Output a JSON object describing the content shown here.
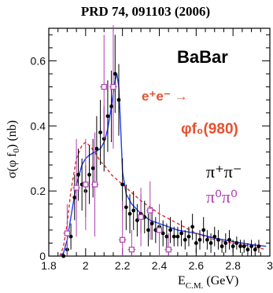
{
  "chart_data": {
    "type": "scatter",
    "title": "PRD 74, 091103 (2006)",
    "xlabel": "E",
    "xlabel_sub": "C.M.",
    "xlabel_unit": "(GeV)",
    "ylabel": "σ(φ f",
    "ylabel_sub": "0",
    "ylabel_unit": ") (nb)",
    "xlim": [
      1.8,
      3.0
    ],
    "ylim": [
      0,
      0.7
    ],
    "x_ticks": [
      "1.8",
      "2",
      "2.2",
      "2.4",
      "2.6",
      "2.8",
      "3"
    ],
    "x_tick_values": [
      1.8,
      2.0,
      2.2,
      2.4,
      2.6,
      2.8,
      3.0
    ],
    "y_ticks": [
      "0",
      "0.2",
      "0.4",
      "0.6"
    ],
    "y_tick_values": [
      0,
      0.2,
      0.4,
      0.6
    ],
    "annotations": {
      "experiment": "BaBar",
      "process": "e⁺e⁻ →",
      "final_state": "φf₀(980)"
    },
    "legend": [
      {
        "name": "π⁺π⁻",
        "color": "#000000"
      },
      {
        "name": "π⁰π⁰",
        "color": "#b040b0"
      }
    ],
    "series": [
      {
        "name": "π⁺π⁻",
        "color": "#000000",
        "marker": "filled-circle",
        "x": [
          1.88,
          1.9,
          1.92,
          1.94,
          1.96,
          1.98,
          2.0,
          2.02,
          2.04,
          2.06,
          2.08,
          2.1,
          2.12,
          2.14,
          2.16,
          2.18,
          2.2,
          2.22,
          2.24,
          2.26,
          2.28,
          2.3,
          2.32,
          2.34,
          2.36,
          2.38,
          2.4,
          2.42,
          2.44,
          2.46,
          2.48,
          2.5,
          2.52,
          2.54,
          2.56,
          2.58,
          2.6,
          2.62,
          2.64,
          2.66,
          2.68,
          2.7,
          2.72,
          2.74,
          2.76,
          2.78,
          2.8,
          2.82,
          2.84,
          2.86,
          2.88,
          2.9,
          2.92,
          2.94
        ],
        "y": [
          0.0,
          0.02,
          0.06,
          0.18,
          0.25,
          0.22,
          0.2,
          0.25,
          0.27,
          0.33,
          0.38,
          0.36,
          0.43,
          0.46,
          0.56,
          0.48,
          0.22,
          0.15,
          0.13,
          0.14,
          0.11,
          0.13,
          0.12,
          0.08,
          0.1,
          0.08,
          0.09,
          0.07,
          0.06,
          0.08,
          0.06,
          0.06,
          0.07,
          0.05,
          0.06,
          0.09,
          0.04,
          0.05,
          0.08,
          0.05,
          0.04,
          0.06,
          0.05,
          0.03,
          0.04,
          0.05,
          0.03,
          0.04,
          0.03,
          0.03,
          0.02,
          0.03,
          0.02,
          0.03
        ],
        "yerr": [
          0.01,
          0.02,
          0.04,
          0.07,
          0.08,
          0.08,
          0.08,
          0.09,
          0.09,
          0.1,
          0.1,
          0.1,
          0.11,
          0.11,
          0.12,
          0.11,
          0.08,
          0.07,
          0.06,
          0.06,
          0.05,
          0.06,
          0.05,
          0.05,
          0.05,
          0.04,
          0.04,
          0.04,
          0.04,
          0.04,
          0.03,
          0.03,
          0.04,
          0.03,
          0.03,
          0.04,
          0.03,
          0.03,
          0.04,
          0.03,
          0.03,
          0.03,
          0.03,
          0.02,
          0.03,
          0.03,
          0.02,
          0.02,
          0.02,
          0.02,
          0.02,
          0.02,
          0.02,
          0.02
        ]
      },
      {
        "name": "π⁰π⁰",
        "color": "#b040b0",
        "marker": "open-square",
        "x": [
          1.9,
          1.95,
          2.0,
          2.05,
          2.1,
          2.15,
          2.2,
          2.25,
          2.3,
          2.35,
          2.4,
          2.45
        ],
        "y": [
          0.07,
          0.21,
          0.22,
          0.22,
          0.52,
          0.52,
          0.05,
          0.02,
          0.12,
          0.14,
          0.08,
          0.02
        ],
        "yerr": [
          0.09,
          0.15,
          0.14,
          0.16,
          0.16,
          0.19,
          0.12,
          0.06,
          0.09,
          0.09,
          0.08,
          0.05
        ]
      }
    ],
    "fit_curves": [
      {
        "style": "solid",
        "color": "#1a3cff",
        "x": [
          1.86,
          1.88,
          1.9,
          1.92,
          1.95,
          1.98,
          2.0,
          2.02,
          2.05,
          2.08,
          2.1,
          2.12,
          2.14,
          2.16,
          2.17,
          2.18,
          2.19,
          2.2,
          2.22,
          2.25,
          2.3,
          2.35,
          2.4,
          2.5,
          2.6,
          2.7,
          2.8,
          2.9,
          2.98
        ],
        "y": [
          0.0,
          0.01,
          0.05,
          0.12,
          0.22,
          0.28,
          0.3,
          0.31,
          0.32,
          0.33,
          0.35,
          0.39,
          0.46,
          0.54,
          0.56,
          0.52,
          0.4,
          0.26,
          0.19,
          0.16,
          0.13,
          0.11,
          0.1,
          0.08,
          0.07,
          0.055,
          0.045,
          0.035,
          0.03
        ]
      },
      {
        "style": "dashed",
        "color": "#e02a2a",
        "x": [
          1.86,
          1.88,
          1.9,
          1.92,
          1.95,
          1.98,
          2.0,
          2.02,
          2.05,
          2.08,
          2.1,
          2.14,
          2.18,
          2.22,
          2.26,
          2.3,
          2.35,
          2.4,
          2.5,
          2.6,
          2.7,
          2.8,
          2.9,
          2.98
        ],
        "y": [
          0.0,
          0.03,
          0.1,
          0.2,
          0.3,
          0.34,
          0.35,
          0.34,
          0.32,
          0.29,
          0.28,
          0.25,
          0.23,
          0.21,
          0.19,
          0.17,
          0.15,
          0.13,
          0.1,
          0.07,
          0.05,
          0.04,
          0.03,
          0.02
        ]
      }
    ]
  }
}
